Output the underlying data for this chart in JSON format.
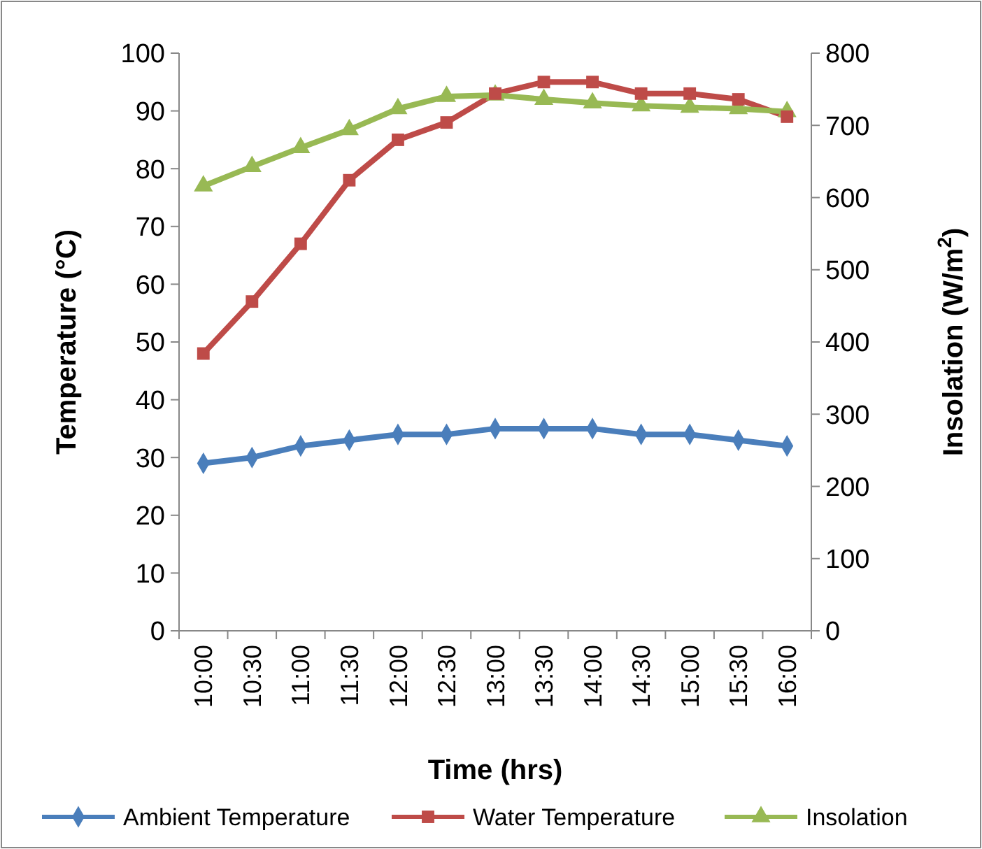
{
  "chart_data": {
    "type": "line",
    "xlabel": "Time (hrs)",
    "ylabel": "Temperature (°C)",
    "y2label": "Insolation (W/m$^{2}$)",
    "categories": [
      "10:00",
      "10:30",
      "11:00",
      "11:30",
      "12:00",
      "12:30",
      "13:00",
      "13:30",
      "14:00",
      "14:30",
      "15:00",
      "15:30",
      "16:00"
    ],
    "series": [
      {
        "name": "Ambient Temperature",
        "color": "#4a7ebb",
        "marker": "diamond",
        "values": [
          29,
          30,
          32,
          33,
          34,
          34,
          35,
          35,
          35,
          34,
          34,
          33,
          32
        ]
      },
      {
        "name": "Water Temperature",
        "color": "#be4b48",
        "marker": "square",
        "values": [
          48,
          57,
          67,
          78,
          85,
          88,
          93,
          95,
          95,
          93,
          93,
          92,
          89
        ]
      },
      {
        "name": "Insolation",
        "color": "#98b954",
        "marker": "triangle",
        "axis": "y2",
        "values": [
          616,
          643,
          669,
          694,
          723,
          740,
          742,
          736,
          731,
          727,
          725,
          723,
          719
        ]
      }
    ],
    "ylim": [
      0,
      100
    ],
    "yticks": [
      0,
      10,
      20,
      30,
      40,
      50,
      60,
      70,
      80,
      90,
      100
    ],
    "y2lim": [
      0,
      800
    ],
    "y2ticks": [
      0,
      100,
      200,
      300,
      400,
      500,
      600,
      700,
      800
    ],
    "grid": false,
    "legend": "bottom"
  }
}
